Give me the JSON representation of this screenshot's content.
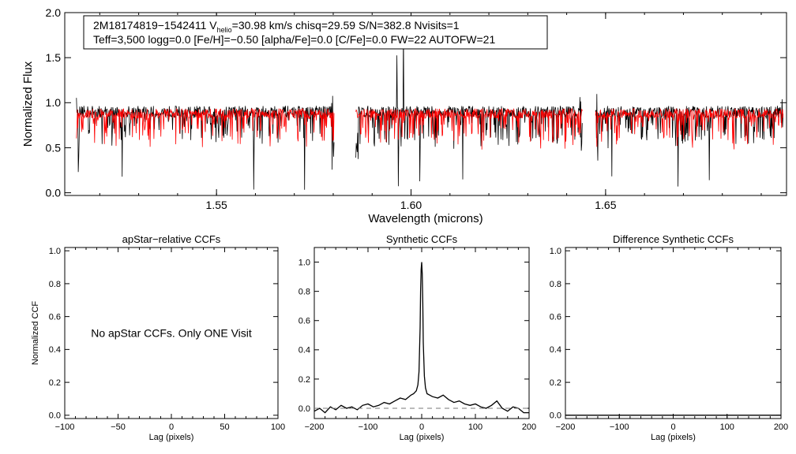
{
  "chart_data": [
    {
      "type": "line",
      "id": "spectrum",
      "title": "",
      "xlabel": "Wavelength (microns)",
      "ylabel": "Normalized Flux",
      "xlim": [
        1.511,
        1.6965
      ],
      "ylim": [
        -0.03,
        2.0
      ],
      "x_ticks": [
        1.55,
        1.6,
        1.65
      ],
      "x_tick_labels": [
        "1.55",
        "1.60",
        "1.65"
      ],
      "y_ticks": [
        0.0,
        0.5,
        1.0,
        1.5,
        2.0
      ],
      "y_tick_labels": [
        "0.0",
        "0.5",
        "1.0",
        "1.5",
        "2.0"
      ],
      "chips": [
        [
          1.514,
          1.5802
        ],
        [
          1.5858,
          1.644
        ],
        [
          1.6474,
          1.6956
        ]
      ],
      "series": [
        {
          "name": "observed",
          "color": "#000000",
          "base": 0.9,
          "noise": 0.13
        },
        {
          "name": "synthetic",
          "color": "#ff0000",
          "base": 0.88,
          "noise": 0.11
        }
      ],
      "annotation": {
        "line1_star": "2M18174819−1542411",
        "line1_v": "V",
        "line1_v_sub": "helio",
        "line1_rest": "=30.98 km/s  chisq=29.59  S/N=382.8  Nvisits=1",
        "line2": "Teff=3,500 logg=0.0 [Fe/H]=−0.50 [alpha/Fe]=0.0 [C/Fe]=0.0 FW=22 AUTOFW=21"
      }
    },
    {
      "type": "line",
      "id": "apstar",
      "title": "apStar−relative CCFs",
      "xlabel": "Lag (pixels)",
      "ylabel": "Normalized CCF",
      "xlim": [
        -100,
        100
      ],
      "ylim": [
        -0.02,
        1.02
      ],
      "x_ticks": [
        -100,
        -50,
        0,
        50,
        100
      ],
      "x_tick_labels": [
        "−100",
        "−50",
        "0",
        "50",
        "100"
      ],
      "y_ticks": [
        0.0,
        0.2,
        0.4,
        0.6,
        0.8,
        1.0
      ],
      "y_tick_labels": [
        "0.0",
        "0.2",
        "0.4",
        "0.6",
        "0.8",
        "1.0"
      ],
      "message": "No apStar CCFs.  Only ONE Visit",
      "series": []
    },
    {
      "type": "line",
      "id": "synthetic",
      "title": "Synthetic CCFs",
      "xlabel": "Lag (pixels)",
      "ylabel": "",
      "xlim": [
        -200,
        200
      ],
      "ylim": [
        -0.07,
        1.1
      ],
      "x_ticks": [
        -200,
        -100,
        0,
        100,
        200
      ],
      "x_tick_labels": [
        "−200",
        "−100",
        "0",
        "100",
        "200"
      ],
      "y_ticks": [
        0.0,
        0.2,
        0.4,
        0.6,
        0.8,
        1.0
      ],
      "y_tick_labels": [
        "0.0",
        "0.2",
        "0.4",
        "0.6",
        "0.8",
        "1.0"
      ],
      "series": [
        {
          "name": "ccf",
          "color": "#000000",
          "style": "solid",
          "x": [
            -200,
            -190,
            -180,
            -170,
            -160,
            -150,
            -140,
            -130,
            -120,
            -110,
            -100,
            -90,
            -80,
            -70,
            -60,
            -50,
            -40,
            -30,
            -20,
            -15,
            -10,
            -7,
            -5,
            -3,
            -2,
            -1,
            0,
            1,
            2,
            3,
            5,
            7,
            10,
            15,
            20,
            30,
            40,
            50,
            60,
            70,
            80,
            90,
            100,
            110,
            120,
            130,
            140,
            150,
            160,
            170,
            180,
            190,
            200
          ],
          "y": [
            -0.02,
            0.0,
            -0.03,
            0.01,
            -0.01,
            0.02,
            0.0,
            0.01,
            -0.01,
            0.02,
            0.03,
            0.01,
            0.02,
            0.04,
            0.03,
            0.05,
            0.07,
            0.06,
            0.09,
            0.1,
            0.12,
            0.16,
            0.25,
            0.55,
            0.8,
            0.95,
            1.0,
            0.92,
            0.72,
            0.45,
            0.22,
            0.14,
            0.1,
            0.09,
            0.08,
            0.07,
            0.09,
            0.06,
            0.04,
            0.05,
            0.03,
            0.02,
            0.03,
            0.01,
            0.0,
            0.02,
            0.05,
            0.0,
            -0.02,
            0.01,
            0.0,
            -0.03,
            -0.03
          ]
        },
        {
          "name": "baseline",
          "color": "#777777",
          "style": "dashed",
          "x": [
            -200,
            200
          ],
          "y": [
            0.0,
            0.0
          ]
        }
      ]
    },
    {
      "type": "line",
      "id": "difference",
      "title": "Difference Synthetic CCFs",
      "xlabel": "Lag (pixels)",
      "ylabel": "",
      "xlim": [
        -200,
        200
      ],
      "ylim": [
        -0.02,
        1.02
      ],
      "x_ticks": [
        -200,
        -100,
        0,
        100,
        200
      ],
      "x_tick_labels": [
        "−200",
        "−100",
        "0",
        "100",
        "200"
      ],
      "y_ticks": [
        0.0,
        0.2,
        0.4,
        0.6,
        0.8,
        1.0
      ],
      "y_tick_labels": [
        "0.0",
        "0.2",
        "0.4",
        "0.6",
        "0.8",
        "1.0"
      ],
      "series": [
        {
          "name": "difference",
          "color": "#000000",
          "style": "solid",
          "x": [
            -200,
            200
          ],
          "y": [
            0.0,
            0.0
          ]
        }
      ]
    }
  ]
}
